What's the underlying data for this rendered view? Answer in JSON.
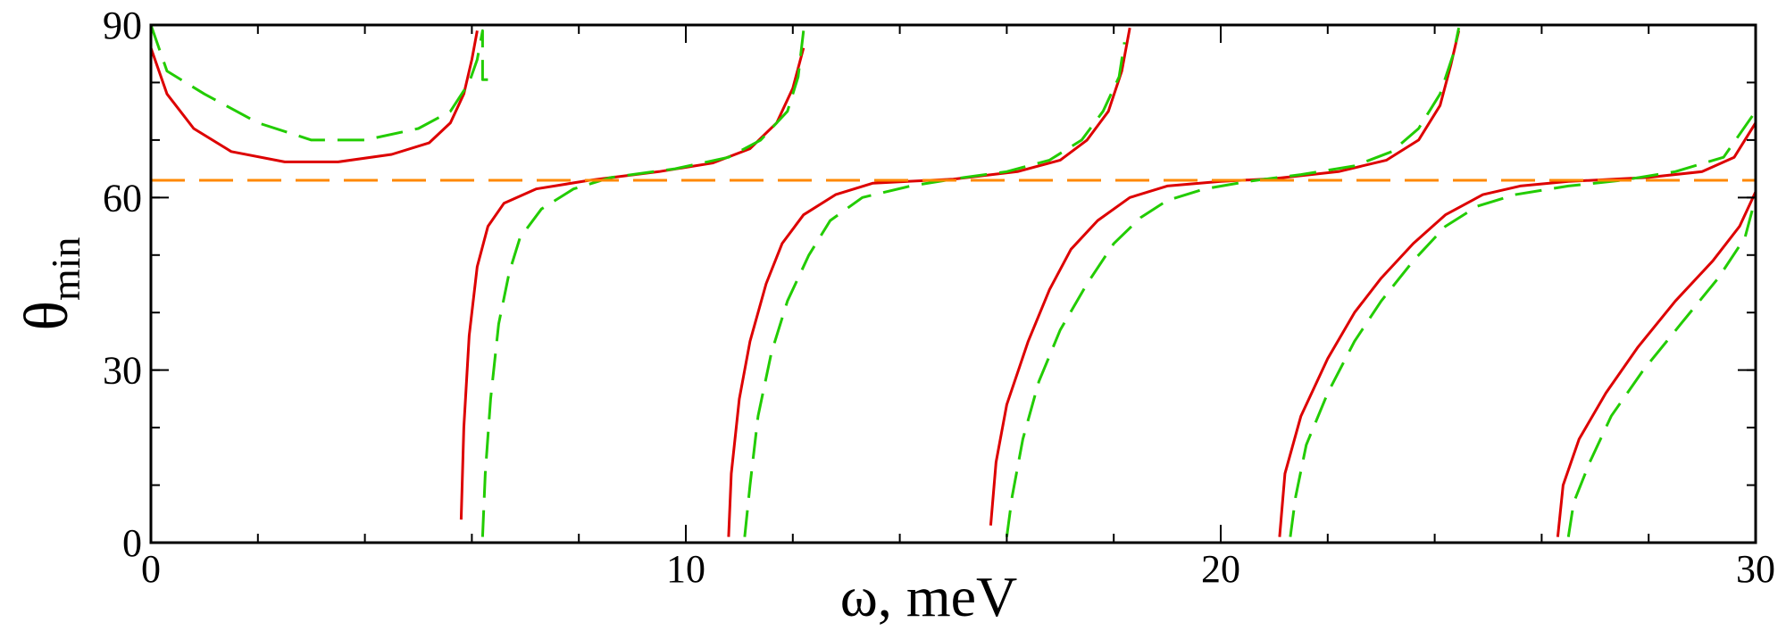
{
  "chart_data": {
    "type": "line",
    "title": "",
    "xlabel": "ω, meV",
    "ylabel": "θ",
    "ylabel_subscript": "min",
    "xlim": [
      0,
      30
    ],
    "ylim": [
      0,
      90
    ],
    "grid": false,
    "xticks": [
      {
        "value": 0,
        "label": "0"
      },
      {
        "value": 10,
        "label": "10"
      },
      {
        "value": 20,
        "label": "20"
      },
      {
        "value": 30,
        "label": "30"
      }
    ],
    "yticks": [
      {
        "value": 0,
        "label": "0"
      },
      {
        "value": 30,
        "label": "30"
      },
      {
        "value": 60,
        "label": "60"
      },
      {
        "value": 90,
        "label": "90"
      }
    ],
    "x_minor_step": 2,
    "y_minor_step": 10,
    "series": [
      {
        "name": "red-solid",
        "color": "#dd0000",
        "dash": "solid",
        "segments": [
          [
            [
              0,
              86
            ],
            [
              0.3,
              78
            ],
            [
              0.8,
              72
            ],
            [
              1.5,
              68
            ],
            [
              2.5,
              66.2
            ],
            [
              3.5,
              66.2
            ],
            [
              4.5,
              67.5
            ],
            [
              5.2,
              69.5
            ],
            [
              5.6,
              73
            ],
            [
              5.85,
              78
            ],
            [
              6.0,
              84
            ],
            [
              6.1,
              89
            ]
          ],
          [
            [
              5.8,
              4
            ],
            [
              5.85,
              20
            ],
            [
              5.95,
              36
            ],
            [
              6.1,
              48
            ],
            [
              6.3,
              55
            ],
            [
              6.6,
              59
            ],
            [
              7.2,
              61.5
            ],
            [
              8.2,
              63
            ],
            [
              9.5,
              64.5
            ],
            [
              10.5,
              66
            ],
            [
              11.2,
              68.5
            ],
            [
              11.7,
              73
            ],
            [
              12.0,
              79
            ],
            [
              12.2,
              86
            ]
          ],
          [
            [
              10.8,
              1
            ],
            [
              10.85,
              12
            ],
            [
              11.0,
              25
            ],
            [
              11.2,
              35
            ],
            [
              11.5,
              45
            ],
            [
              11.8,
              52
            ],
            [
              12.2,
              57
            ],
            [
              12.8,
              60.5
            ],
            [
              13.5,
              62.5
            ],
            [
              15,
              63.2
            ],
            [
              16.2,
              64.5
            ],
            [
              17.0,
              66.5
            ],
            [
              17.5,
              70
            ],
            [
              17.9,
              75
            ],
            [
              18.15,
              82
            ],
            [
              18.3,
              89.5
            ]
          ],
          [
            [
              15.7,
              3
            ],
            [
              15.8,
              14
            ],
            [
              16.0,
              24
            ],
            [
              16.4,
              35
            ],
            [
              16.8,
              44
            ],
            [
              17.2,
              51
            ],
            [
              17.7,
              56
            ],
            [
              18.3,
              60
            ],
            [
              19.0,
              62
            ],
            [
              20,
              62.8
            ],
            [
              21,
              63.3
            ],
            [
              22.2,
              64.5
            ],
            [
              23.1,
              66.5
            ],
            [
              23.7,
              70
            ],
            [
              24.1,
              76
            ],
            [
              24.3,
              83
            ],
            [
              24.45,
              89
            ]
          ],
          [
            [
              21.1,
              1
            ],
            [
              21.2,
              12
            ],
            [
              21.5,
              22
            ],
            [
              22,
              32
            ],
            [
              22.5,
              40
            ],
            [
              23,
              46
            ],
            [
              23.6,
              52
            ],
            [
              24.2,
              57
            ],
            [
              24.9,
              60.5
            ],
            [
              25.6,
              62
            ],
            [
              26.5,
              62.8
            ],
            [
              28,
              63.5
            ],
            [
              29,
              64.5
            ],
            [
              29.6,
              67
            ],
            [
              30,
              73
            ]
          ],
          [
            [
              26.3,
              1
            ],
            [
              26.4,
              10
            ],
            [
              26.7,
              18
            ],
            [
              27.2,
              26
            ],
            [
              27.8,
              34
            ],
            [
              28.5,
              42
            ],
            [
              29.2,
              49
            ],
            [
              29.7,
              55
            ],
            [
              30,
              61
            ]
          ]
        ]
      },
      {
        "name": "green-dashed",
        "color": "#22cc00",
        "dash": "dashed",
        "segments": [
          [
            [
              0,
              90
            ],
            [
              0.3,
              82
            ],
            [
              1,
              78
            ],
            [
              2,
              73
            ],
            [
              3,
              70
            ],
            [
              4,
              70
            ],
            [
              5,
              72
            ],
            [
              5.6,
              75
            ],
            [
              5.95,
              80
            ],
            [
              6.1,
              84
            ],
            [
              6.2,
              89
            ],
            [
              6.2,
              80.5
            ],
            [
              6.3,
              80.5
            ]
          ],
          [
            [
              6.2,
              1
            ],
            [
              6.25,
              12
            ],
            [
              6.35,
              25
            ],
            [
              6.5,
              38
            ],
            [
              6.7,
              47
            ],
            [
              6.9,
              53
            ],
            [
              7.3,
              58
            ],
            [
              7.9,
              61.5
            ],
            [
              8.6,
              63.5
            ],
            [
              9.8,
              65
            ],
            [
              10.8,
              67
            ],
            [
              11.4,
              70
            ],
            [
              11.9,
              75
            ],
            [
              12.1,
              81
            ],
            [
              12.2,
              89
            ]
          ],
          [
            [
              11.1,
              1
            ],
            [
              11.2,
              10
            ],
            [
              11.35,
              22
            ],
            [
              11.6,
              33
            ],
            [
              11.9,
              42
            ],
            [
              12.3,
              50
            ],
            [
              12.7,
              56
            ],
            [
              13.3,
              60
            ],
            [
              14.2,
              62
            ],
            [
              15.2,
              63.5
            ],
            [
              16,
              64.5
            ],
            [
              16.8,
              66.5
            ],
            [
              17.4,
              70
            ],
            [
              17.8,
              75
            ],
            [
              18.1,
              81
            ],
            [
              18.2,
              87
            ]
          ],
          [
            [
              16.0,
              1
            ],
            [
              16.1,
              8
            ],
            [
              16.3,
              18
            ],
            [
              16.6,
              28
            ],
            [
              17.0,
              37
            ],
            [
              17.5,
              45
            ],
            [
              18.0,
              52
            ],
            [
              18.5,
              56.5
            ],
            [
              19,
              59.5
            ],
            [
              19.7,
              61.5
            ],
            [
              20.5,
              62.8
            ],
            [
              21.5,
              64
            ],
            [
              22.5,
              65.5
            ],
            [
              23.2,
              68
            ],
            [
              23.7,
              72
            ],
            [
              24.1,
              78
            ],
            [
              24.35,
              85
            ],
            [
              24.45,
              89.5
            ]
          ],
          [
            [
              21.3,
              1
            ],
            [
              21.4,
              8
            ],
            [
              21.6,
              17
            ],
            [
              22,
              26
            ],
            [
              22.5,
              35
            ],
            [
              23,
              42
            ],
            [
              23.6,
              49
            ],
            [
              24.2,
              55
            ],
            [
              24.8,
              58.5
            ],
            [
              25.5,
              60.5
            ],
            [
              26.5,
              62
            ],
            [
              27.5,
              63
            ],
            [
              28.5,
              64.5
            ],
            [
              29.4,
              67
            ],
            [
              30,
              75
            ]
          ],
          [
            [
              26.5,
              1
            ],
            [
              26.6,
              7
            ],
            [
              26.9,
              14
            ],
            [
              27.3,
              22
            ],
            [
              27.9,
              30
            ],
            [
              28.6,
              38
            ],
            [
              29.3,
              46
            ],
            [
              29.8,
              53
            ],
            [
              30,
              60
            ]
          ]
        ]
      },
      {
        "name": "orange-reference",
        "color": "#ff8800",
        "dash": "long-dashed",
        "segments": [
          [
            [
              0,
              63
            ],
            [
              30,
              63
            ]
          ]
        ]
      }
    ]
  }
}
